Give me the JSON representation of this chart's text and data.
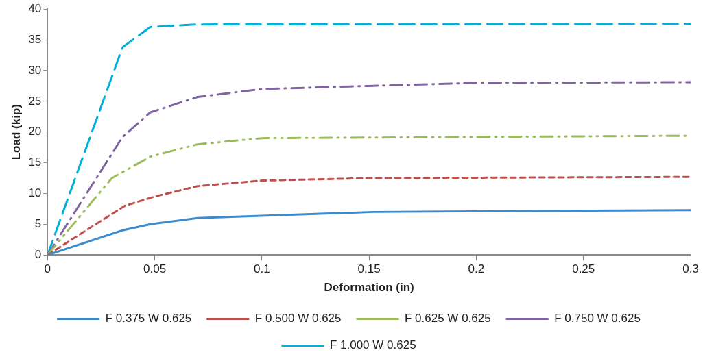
{
  "chart_data": {
    "type": "line",
    "xlabel": "Deformation (in)",
    "ylabel": "Load (kip)",
    "xlim": [
      0,
      0.3
    ],
    "xticks": [
      0,
      0.05,
      0.1,
      0.15,
      0.2,
      0.25,
      0.3
    ],
    "ylim": [
      0,
      40
    ],
    "yticks": [
      0,
      5,
      10,
      15,
      20,
      25,
      30,
      35,
      40
    ],
    "grid": false,
    "legend": "bottom",
    "marker": "none",
    "series": [
      {
        "name": "F 0.375 W 0.625",
        "color": "#3d8bcd",
        "line_style": "solid",
        "x": [
          0,
          0.035,
          0.048,
          0.07,
          0.152,
          0.3
        ],
        "values": [
          0,
          4,
          5,
          6,
          7,
          7.3
        ]
      },
      {
        "name": "F 0.500 W 0.625",
        "color": "#c0504d",
        "line_style": "dashed",
        "x": [
          0,
          0.036,
          0.05,
          0.07,
          0.1,
          0.15,
          0.3
        ],
        "values": [
          0,
          8,
          9.5,
          11.2,
          12.1,
          12.5,
          12.7
        ]
      },
      {
        "name": "F 0.625 W 0.625",
        "color": "#9bbb59",
        "line_style": "dashdotdot",
        "x": [
          0,
          0.03,
          0.048,
          0.07,
          0.1,
          0.15,
          0.3
        ],
        "values": [
          0,
          12.5,
          16,
          18,
          19,
          19.1,
          19.4
        ]
      },
      {
        "name": "F 0.750 W 0.625",
        "color": "#8064a2",
        "line_style": "dashdot",
        "x": [
          0,
          0.035,
          0.048,
          0.07,
          0.1,
          0.15,
          0.2,
          0.3
        ],
        "values": [
          0,
          19.2,
          23.2,
          25.7,
          27,
          27.5,
          28,
          28.1
        ]
      },
      {
        "name": "F 1.000 W 0.625",
        "color": "#00b0d8",
        "line_style": "longdash",
        "x": [
          0,
          0.035,
          0.048,
          0.07,
          0.3
        ],
        "values": [
          0,
          33.8,
          37.1,
          37.5,
          37.6
        ]
      }
    ]
  }
}
